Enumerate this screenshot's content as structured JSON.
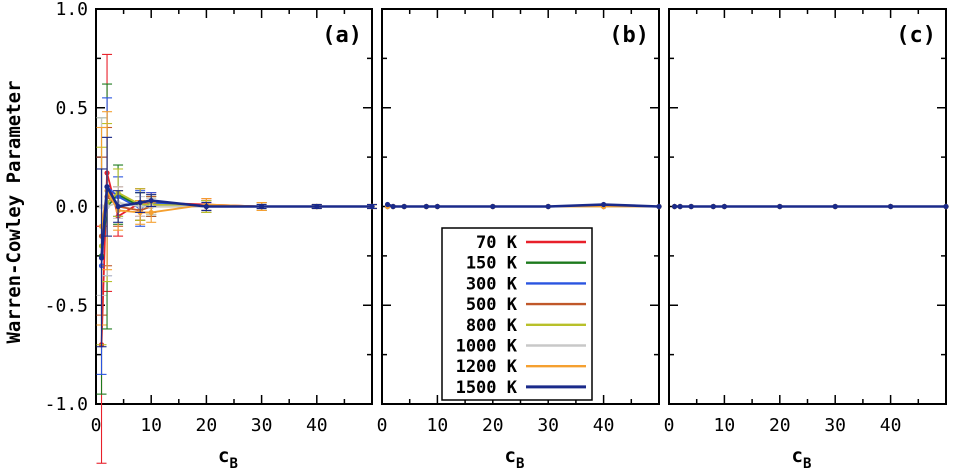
{
  "chart_data": {
    "type": "line",
    "ylabel": "Warren-Cowley Parameter",
    "xlabel": "c",
    "xlabel_sub": "B",
    "ylim": [
      -1.0,
      1.0
    ],
    "xlim": [
      0,
      50
    ],
    "yticks": [
      -1.0,
      -0.5,
      0.0,
      0.5,
      1.0
    ],
    "ytick_labels": [
      "-1.0",
      "-0.5",
      "0.0",
      "0.5",
      "1.0"
    ],
    "xticks": [
      0,
      10,
      20,
      30,
      40
    ],
    "xtick_labels": [
      "0",
      "10",
      "20",
      "30",
      "40"
    ],
    "x": [
      1,
      2,
      4,
      8,
      10,
      20,
      30,
      40,
      50
    ],
    "legend": {
      "location": "panel (b), lower-left",
      "entries": [
        {
          "label": "70 K",
          "color": "#e8202a"
        },
        {
          "label": "150 K",
          "color": "#1d7a1d"
        },
        {
          "label": "300 K",
          "color": "#2a55e0"
        },
        {
          "label": "500 K",
          "color": "#c0582a"
        },
        {
          "label": "800 K",
          "color": "#b8c02a"
        },
        {
          "label": "1000 K",
          "color": "#c8c8c8"
        },
        {
          "label": "1200 K",
          "color": "#f5a030"
        },
        {
          "label": "1500 K",
          "color": "#1a2a8a"
        }
      ]
    },
    "panels": [
      {
        "label": "(a)",
        "series": [
          {
            "name": "70 K",
            "values": [
              -0.7,
              0.17,
              -0.05,
              0.02,
              0.02,
              0.01,
              0.0,
              0.0,
              0.0
            ],
            "errors": [
              0.6,
              0.6,
              0.1,
              0.07,
              0.05,
              0.03,
              0.02,
              0.01,
              0.01
            ]
          },
          {
            "name": "150 K",
            "values": [
              -0.25,
              0.0,
              0.06,
              0.0,
              0.0,
              0.0,
              0.0,
              0.0,
              0.0
            ],
            "errors": [
              0.7,
              0.62,
              0.15,
              0.07,
              0.05,
              0.03,
              0.02,
              0.01,
              0.01
            ]
          },
          {
            "name": "300 K",
            "values": [
              -0.3,
              0.1,
              0.05,
              -0.01,
              0.02,
              0.0,
              0.0,
              0.0,
              0.0
            ],
            "errors": [
              0.55,
              0.45,
              0.1,
              0.09,
              0.05,
              0.03,
              0.02,
              0.01,
              0.01
            ]
          },
          {
            "name": "500 K",
            "values": [
              -0.15,
              0.05,
              0.0,
              -0.02,
              0.0,
              0.0,
              0.0,
              0.0,
              0.0
            ],
            "errors": [
              0.4,
              0.35,
              0.1,
              0.05,
              0.05,
              0.03,
              0.02,
              0.01,
              0.01
            ]
          },
          {
            "name": "800 K",
            "values": [
              -0.2,
              0.02,
              0.07,
              0.01,
              0.01,
              0.0,
              0.0,
              0.0,
              0.0
            ],
            "errors": [
              0.5,
              0.4,
              0.12,
              0.08,
              0.05,
              0.03,
              0.02,
              0.01,
              0.01
            ]
          },
          {
            "name": "1000 K",
            "values": [
              0.0,
              0.0,
              0.02,
              0.0,
              0.0,
              0.0,
              0.0,
              0.0,
              0.0
            ],
            "errors": [
              0.45,
              0.35,
              0.08,
              0.05,
              0.04,
              0.02,
              0.02,
              0.01,
              0.01
            ]
          },
          {
            "name": "1200 K",
            "values": [
              -0.1,
              0.08,
              -0.02,
              -0.03,
              -0.03,
              0.01,
              0.0,
              0.0,
              0.0
            ],
            "errors": [
              0.5,
              0.4,
              0.1,
              0.06,
              0.05,
              0.03,
              0.02,
              0.01,
              0.01
            ]
          },
          {
            "name": "1500 K",
            "values": [
              -0.26,
              0.1,
              0.0,
              0.02,
              0.03,
              0.0,
              0.0,
              0.0,
              0.0
            ],
            "errors": [
              0.45,
              0.25,
              0.08,
              0.05,
              0.03,
              0.02,
              0.01,
              0.01,
              0.01
            ]
          }
        ]
      },
      {
        "label": "(b)",
        "series": [
          {
            "name": "70 K",
            "values": [
              0.0,
              0.0,
              0.0,
              0.0,
              0.0,
              0.0,
              0.0,
              0.0,
              0.0
            ]
          },
          {
            "name": "150 K",
            "values": [
              0.0,
              0.0,
              0.0,
              0.0,
              0.0,
              0.0,
              0.0,
              0.0,
              0.0
            ]
          },
          {
            "name": "300 K",
            "values": [
              0.0,
              0.0,
              0.0,
              0.0,
              0.0,
              0.0,
              0.0,
              0.0,
              0.0
            ]
          },
          {
            "name": "500 K",
            "values": [
              0.0,
              0.0,
              0.0,
              0.0,
              0.0,
              0.0,
              0.0,
              0.0,
              0.0
            ]
          },
          {
            "name": "800 K",
            "values": [
              0.0,
              0.0,
              0.0,
              0.0,
              0.0,
              0.0,
              0.0,
              0.0,
              0.0
            ]
          },
          {
            "name": "1000 K",
            "values": [
              0.0,
              0.0,
              0.0,
              0.0,
              0.0,
              0.0,
              0.0,
              0.0,
              0.0
            ]
          },
          {
            "name": "1200 K",
            "values": [
              0.0,
              0.0,
              0.0,
              0.0,
              0.0,
              0.0,
              0.0,
              0.0,
              0.0
            ]
          },
          {
            "name": "1500 K",
            "values": [
              0.01,
              0.0,
              0.0,
              0.0,
              0.0,
              0.0,
              0.0,
              0.01,
              0.0
            ]
          }
        ]
      },
      {
        "label": "(c)",
        "series": [
          {
            "name": "70 K",
            "values": [
              0.0,
              0.0,
              0.0,
              0.0,
              0.0,
              0.0,
              0.0,
              0.0,
              0.0
            ]
          },
          {
            "name": "150 K",
            "values": [
              0.0,
              0.0,
              0.0,
              0.0,
              0.0,
              0.0,
              0.0,
              0.0,
              0.0
            ]
          },
          {
            "name": "300 K",
            "values": [
              0.0,
              0.0,
              0.0,
              0.0,
              0.0,
              0.0,
              0.0,
              0.0,
              0.0
            ]
          },
          {
            "name": "500 K",
            "values": [
              0.0,
              0.0,
              0.0,
              0.0,
              0.0,
              0.0,
              0.0,
              0.0,
              0.0
            ]
          },
          {
            "name": "800 K",
            "values": [
              0.0,
              0.0,
              0.0,
              0.0,
              0.0,
              0.0,
              0.0,
              0.0,
              0.0
            ]
          },
          {
            "name": "1000 K",
            "values": [
              0.0,
              0.0,
              0.0,
              0.0,
              0.0,
              0.0,
              0.0,
              0.0,
              0.0
            ]
          },
          {
            "name": "1200 K",
            "values": [
              0.0,
              0.0,
              0.0,
              0.0,
              0.0,
              0.0,
              0.0,
              0.0,
              0.0
            ]
          },
          {
            "name": "1500 K",
            "values": [
              0.0,
              0.0,
              0.0,
              0.0,
              0.0,
              0.0,
              0.0,
              0.0,
              0.0
            ]
          }
        ]
      }
    ]
  }
}
